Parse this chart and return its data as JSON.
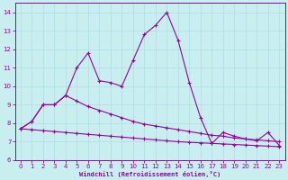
{
  "xlabel": "Windchill (Refroidissement éolien,°C)",
  "background_color": "#c8eef0",
  "grid_color": "#b0dde0",
  "line_color": "#990099",
  "xlim": [
    -0.5,
    23.5
  ],
  "ylim": [
    6,
    14.5
  ],
  "xticks": [
    0,
    1,
    2,
    3,
    4,
    5,
    6,
    7,
    8,
    9,
    10,
    11,
    12,
    13,
    14,
    15,
    16,
    17,
    18,
    19,
    20,
    21,
    22,
    23
  ],
  "yticks": [
    6,
    7,
    8,
    9,
    10,
    11,
    12,
    13,
    14
  ],
  "s1_x": [
    0,
    1,
    2,
    3,
    4,
    5,
    6,
    7,
    8,
    9,
    10,
    11,
    12,
    13,
    14,
    15,
    16,
    17,
    18,
    19,
    20,
    21,
    22,
    23
  ],
  "s1_y": [
    7.7,
    7.65,
    7.6,
    7.55,
    7.5,
    7.45,
    7.4,
    7.35,
    7.3,
    7.25,
    7.2,
    7.15,
    7.1,
    7.05,
    7.0,
    6.97,
    6.94,
    6.91,
    6.88,
    6.85,
    6.82,
    6.79,
    6.76,
    6.73
  ],
  "s2_x": [
    0,
    1,
    2,
    3,
    4,
    5,
    6,
    7,
    8,
    9,
    10,
    11,
    12,
    13,
    14,
    15,
    16,
    17,
    18,
    19,
    20,
    21,
    22,
    23
  ],
  "s2_y": [
    7.7,
    8.1,
    9.0,
    9.0,
    9.5,
    9.2,
    8.9,
    8.7,
    8.5,
    8.3,
    8.1,
    7.95,
    7.85,
    7.75,
    7.65,
    7.55,
    7.45,
    7.35,
    7.3,
    7.2,
    7.15,
    7.1,
    7.05,
    7.0
  ],
  "s3_x": [
    0,
    1,
    2,
    3,
    4,
    5,
    6,
    7,
    8,
    9,
    10,
    11,
    12,
    13,
    14,
    15,
    16,
    17,
    18,
    19,
    20,
    21,
    22,
    23
  ],
  "s3_y": [
    7.7,
    8.1,
    9.0,
    9.0,
    9.5,
    11.0,
    11.8,
    10.3,
    10.2,
    10.0,
    11.4,
    12.8,
    13.3,
    14.0,
    12.5,
    10.2,
    8.3,
    6.9,
    7.5,
    7.3,
    7.15,
    7.05,
    7.5,
    6.8
  ],
  "tick_fontsize": 5,
  "xlabel_fontsize": 5
}
